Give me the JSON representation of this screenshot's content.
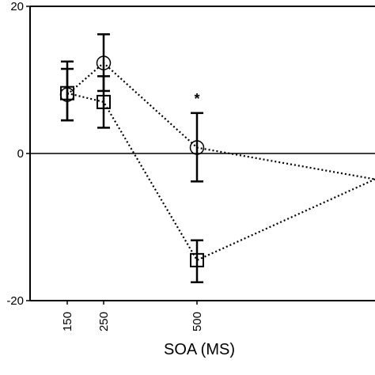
{
  "chart_data": {
    "type": "line",
    "title": "",
    "xlabel": "SOA (MS)",
    "ylabel": "",
    "ylim": [
      -20,
      20
    ],
    "x_ticks": [
      "150",
      "250",
      "500"
    ],
    "y_ticks": [
      "20",
      "0",
      "-20"
    ],
    "grid": false,
    "legend": "none",
    "reference_line": 0,
    "series": [
      {
        "marker": "circle",
        "line_style": "dotted",
        "points": [
          {
            "x": 150,
            "y": 8,
            "err_low": 4.5,
            "err_high": 12.5
          },
          {
            "x": 250,
            "y": 12.3,
            "err_low": 8.5,
            "err_high": 16.2
          },
          {
            "x": 500,
            "y": 0.8,
            "err_low": -3.8,
            "err_high": 5.5
          }
        ],
        "continues_to": {
          "y": -3.5
        }
      },
      {
        "marker": "square",
        "line_style": "dotted",
        "points": [
          {
            "x": 150,
            "y": 8.2,
            "err_low": 4.5,
            "err_high": 11.5
          },
          {
            "x": 250,
            "y": 7,
            "err_low": 3.5,
            "err_high": 10.5
          },
          {
            "x": 500,
            "y": -14.5,
            "err_low": -17.5,
            "err_high": -11.8
          }
        ],
        "continues_to": {
          "y": -3.5
        }
      }
    ],
    "annotations": [
      {
        "text": "*",
        "x": 500,
        "y": 7.4
      }
    ],
    "colors": {
      "axis": "#000000",
      "marks": "#000000",
      "background": "#ffffff"
    }
  }
}
